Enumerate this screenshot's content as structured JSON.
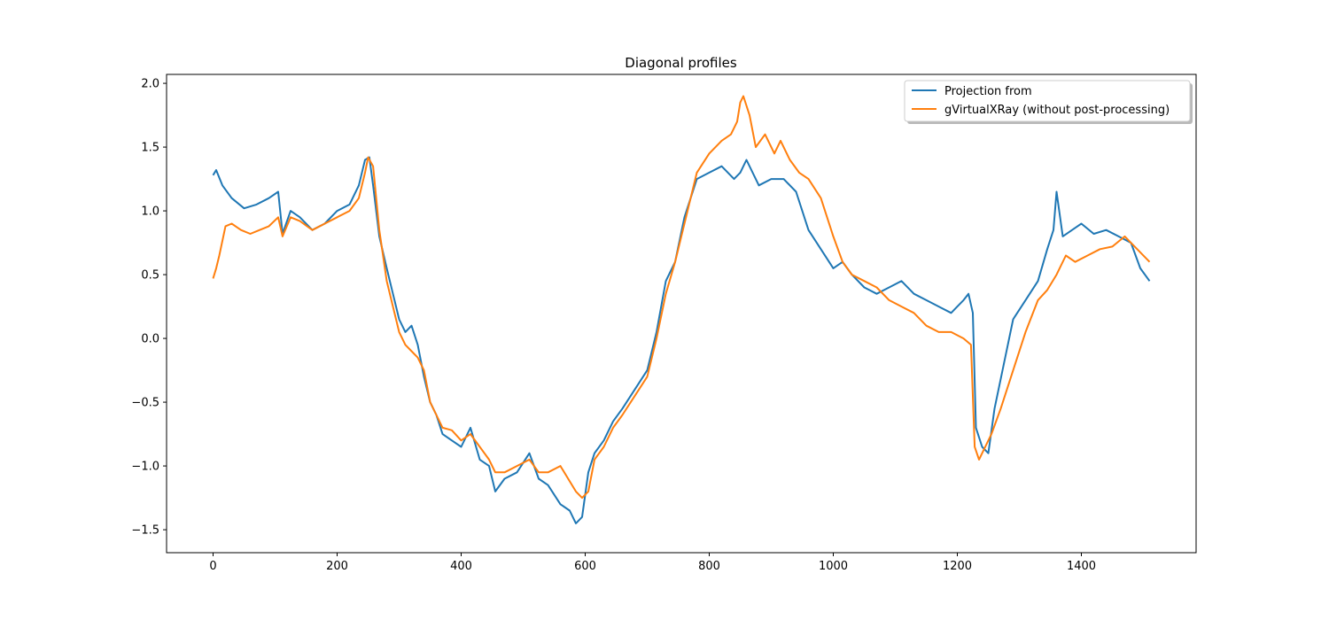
{
  "chart_data": {
    "type": "line",
    "title": "Diagonal profiles",
    "xlabel": "",
    "ylabel": "",
    "xlim": [
      -75,
      1585
    ],
    "ylim": [
      -1.68,
      2.07
    ],
    "xticks": [
      0,
      200,
      400,
      600,
      800,
      1000,
      1200,
      1400
    ],
    "yticks": [
      -1.5,
      -1.0,
      -0.5,
      0.0,
      0.5,
      1.0,
      1.5,
      2.0
    ],
    "xtick_labels": [
      "0",
      "200",
      "400",
      "600",
      "800",
      "1000",
      "1200",
      "1400"
    ],
    "ytick_labels": [
      "−1.5",
      "−1.0",
      "−0.5",
      "0.0",
      "0.5",
      "1.0",
      "1.5",
      "2.0"
    ],
    "grid": false,
    "legend_position": "top-right",
    "series": [
      {
        "name": "Projection from",
        "color": "#1f77b4",
        "x": [
          0,
          5,
          15,
          30,
          50,
          70,
          90,
          105,
          112,
          125,
          140,
          160,
          180,
          200,
          220,
          235,
          245,
          252,
          258,
          268,
          280,
          290,
          300,
          310,
          320,
          330,
          340,
          350,
          360,
          370,
          385,
          400,
          415,
          430,
          445,
          455,
          470,
          490,
          510,
          525,
          540,
          560,
          575,
          585,
          595,
          605,
          615,
          630,
          645,
          660,
          680,
          700,
          715,
          730,
          745,
          760,
          780,
          800,
          820,
          840,
          850,
          860,
          880,
          900,
          920,
          940,
          960,
          980,
          1000,
          1015,
          1030,
          1050,
          1070,
          1090,
          1110,
          1130,
          1150,
          1170,
          1190,
          1200,
          1210,
          1218,
          1225,
          1230,
          1240,
          1250,
          1260,
          1275,
          1290,
          1310,
          1330,
          1345,
          1355,
          1360,
          1370,
          1385,
          1400,
          1420,
          1440,
          1460,
          1480,
          1495,
          1510
        ],
        "y": [
          1.28,
          1.32,
          1.2,
          1.1,
          1.02,
          1.05,
          1.1,
          1.15,
          0.82,
          1.0,
          0.95,
          0.85,
          0.9,
          1.0,
          1.05,
          1.2,
          1.4,
          1.42,
          1.2,
          0.8,
          0.55,
          0.35,
          0.15,
          0.05,
          0.1,
          -0.05,
          -0.3,
          -0.5,
          -0.6,
          -0.75,
          -0.8,
          -0.85,
          -0.7,
          -0.95,
          -1.0,
          -1.2,
          -1.1,
          -1.05,
          -0.9,
          -1.1,
          -1.15,
          -1.3,
          -1.35,
          -1.45,
          -1.4,
          -1.05,
          -0.9,
          -0.8,
          -0.65,
          -0.55,
          -0.4,
          -0.25,
          0.05,
          0.45,
          0.6,
          0.95,
          1.25,
          1.3,
          1.35,
          1.25,
          1.3,
          1.4,
          1.2,
          1.25,
          1.25,
          1.15,
          0.85,
          0.7,
          0.55,
          0.6,
          0.5,
          0.4,
          0.35,
          0.4,
          0.45,
          0.35,
          0.3,
          0.25,
          0.2,
          0.25,
          0.3,
          0.35,
          0.2,
          -0.7,
          -0.85,
          -0.9,
          -0.55,
          -0.2,
          0.15,
          0.3,
          0.45,
          0.7,
          0.85,
          1.15,
          0.8,
          0.85,
          0.9,
          0.82,
          0.85,
          0.8,
          0.75,
          0.55,
          0.45
        ]
      },
      {
        "name": "gVirtualXRay (without post-processing)",
        "color": "#ff7f0e",
        "x": [
          0,
          5,
          10,
          20,
          30,
          45,
          60,
          75,
          90,
          105,
          112,
          125,
          140,
          160,
          180,
          200,
          220,
          235,
          245,
          250,
          258,
          268,
          280,
          290,
          300,
          310,
          320,
          330,
          340,
          350,
          360,
          370,
          385,
          400,
          415,
          430,
          445,
          455,
          470,
          490,
          510,
          525,
          540,
          560,
          575,
          585,
          595,
          605,
          615,
          630,
          645,
          660,
          680,
          700,
          715,
          730,
          745,
          760,
          780,
          800,
          820,
          835,
          845,
          850,
          855,
          865,
          875,
          890,
          905,
          915,
          930,
          945,
          960,
          980,
          1000,
          1015,
          1030,
          1050,
          1070,
          1090,
          1110,
          1130,
          1150,
          1170,
          1190,
          1210,
          1222,
          1228,
          1235,
          1245,
          1255,
          1270,
          1290,
          1310,
          1330,
          1345,
          1360,
          1375,
          1390,
          1410,
          1430,
          1450,
          1470,
          1490,
          1510
        ],
        "y": [
          0.47,
          0.55,
          0.65,
          0.88,
          0.9,
          0.85,
          0.82,
          0.85,
          0.88,
          0.95,
          0.8,
          0.95,
          0.92,
          0.85,
          0.9,
          0.95,
          1.0,
          1.1,
          1.3,
          1.42,
          1.35,
          0.85,
          0.45,
          0.25,
          0.05,
          -0.05,
          -0.1,
          -0.15,
          -0.25,
          -0.5,
          -0.6,
          -0.7,
          -0.72,
          -0.8,
          -0.75,
          -0.85,
          -0.95,
          -1.05,
          -1.05,
          -1.0,
          -0.95,
          -1.05,
          -1.05,
          -1.0,
          -1.12,
          -1.2,
          -1.25,
          -1.2,
          -0.95,
          -0.85,
          -0.7,
          -0.6,
          -0.45,
          -0.3,
          0.0,
          0.35,
          0.6,
          0.9,
          1.3,
          1.45,
          1.55,
          1.6,
          1.7,
          1.85,
          1.9,
          1.75,
          1.5,
          1.6,
          1.45,
          1.55,
          1.4,
          1.3,
          1.25,
          1.1,
          0.8,
          0.6,
          0.5,
          0.45,
          0.4,
          0.3,
          0.25,
          0.2,
          0.1,
          0.05,
          0.05,
          0.0,
          -0.05,
          -0.85,
          -0.95,
          -0.85,
          -0.75,
          -0.55,
          -0.25,
          0.05,
          0.3,
          0.38,
          0.5,
          0.65,
          0.6,
          0.65,
          0.7,
          0.72,
          0.8,
          0.7,
          0.6
        ]
      }
    ]
  }
}
